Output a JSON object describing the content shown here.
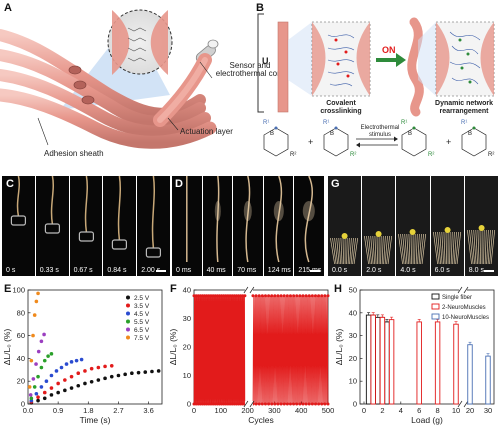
{
  "panels": {
    "A": {
      "letter": "A",
      "labels": {
        "sensor": "Sensor and electrothermal core",
        "actuation": "Actuation layer",
        "adhesion": "Adhesion sheath"
      }
    },
    "B": {
      "letter": "B",
      "u_label": "U",
      "on_label": "ON",
      "left_caption": "Covalent crosslinking",
      "right_caption": "Dynamic network rearrangement",
      "stimulus_label": "Electrothermal stimulus",
      "chem": {
        "r1": "R¹",
        "r2": "R²",
        "b": "B",
        "o": "O"
      }
    },
    "C": {
      "letter": "C",
      "frames": [
        "0 s",
        "0.33 s",
        "0.67 s",
        "0.84 s",
        "2.00 s"
      ]
    },
    "D": {
      "letter": "D",
      "frames": [
        "0 ms",
        "40 ms",
        "70 ms",
        "124 ms",
        "215 ms"
      ]
    },
    "G": {
      "letter": "G",
      "frames": [
        "0.0 s",
        "2.0 s",
        "4.0 s",
        "6.0 s",
        "8.0 s"
      ]
    },
    "E": {
      "letter": "E"
    },
    "F": {
      "letter": "F"
    },
    "H": {
      "letter": "H"
    }
  },
  "colors": {
    "fiber_pink": "#e8a098",
    "fiber_dark": "#c8786e",
    "red": "#e21b1b",
    "blue": "#4a6fb3",
    "green": "#2e8b3b"
  },
  "chart_data": [
    {
      "id": "E",
      "type": "scatter",
      "xlabel": "Time (s)",
      "ylabel": "ΔL/L₀ (%)",
      "xlim": [
        0,
        4.0
      ],
      "ylim": [
        0,
        100
      ],
      "xticks": [
        "0.0",
        "0.9",
        "1.8",
        "2.7",
        "3.6"
      ],
      "yticks": [
        "0",
        "20",
        "40",
        "60",
        "80",
        "100"
      ],
      "legend_position": "top-right",
      "series": [
        {
          "name": "2.5 V",
          "color": "#111111",
          "x": [
            0.1,
            0.3,
            0.5,
            0.7,
            0.9,
            1.1,
            1.3,
            1.5,
            1.7,
            1.9,
            2.1,
            2.3,
            2.5,
            2.7,
            2.9,
            3.1,
            3.3,
            3.5,
            3.7,
            3.9
          ],
          "y": [
            1,
            3,
            5,
            8,
            10,
            12,
            14,
            16,
            18,
            19.5,
            21,
            22.5,
            24,
            25,
            26,
            27,
            27.5,
            28,
            28.5,
            29
          ]
        },
        {
          "name": "3.5 V",
          "color": "#e21b1b",
          "x": [
            0.1,
            0.3,
            0.5,
            0.7,
            0.9,
            1.1,
            1.3,
            1.5,
            1.7,
            1.9,
            2.1,
            2.3,
            2.5
          ],
          "y": [
            2,
            6,
            10,
            14,
            18,
            21,
            24,
            27,
            29,
            31,
            32,
            33,
            33.5
          ]
        },
        {
          "name": "4.5 V",
          "color": "#2a4bd0",
          "x": [
            0.1,
            0.25,
            0.4,
            0.55,
            0.7,
            0.85,
            1.0,
            1.15,
            1.3,
            1.45,
            1.6
          ],
          "y": [
            3,
            9,
            15,
            20,
            25,
            29,
            32,
            35,
            37,
            38,
            39
          ]
        },
        {
          "name": "5.5 V",
          "color": "#2aa02a",
          "x": [
            0.1,
            0.2,
            0.3,
            0.4,
            0.5,
            0.6,
            0.7
          ],
          "y": [
            5,
            15,
            24,
            32,
            38,
            42,
            44
          ]
        },
        {
          "name": "6.5 V",
          "color": "#9b3fc0",
          "x": [
            0.08,
            0.16,
            0.24,
            0.32,
            0.4,
            0.48
          ],
          "y": [
            8,
            22,
            35,
            46,
            55,
            61
          ]
        },
        {
          "name": "7.5 V",
          "color": "#f08a1c",
          "x": [
            0.05,
            0.1,
            0.15,
            0.2,
            0.25,
            0.3
          ],
          "y": [
            15,
            38,
            60,
            78,
            90,
            97
          ]
        }
      ]
    },
    {
      "id": "F",
      "type": "line",
      "xlabel": "Cycles",
      "ylabel": "ΔL/L₀ (%)",
      "xlim": [
        0,
        500
      ],
      "ylim": [
        0,
        40
      ],
      "xticks": [
        "0",
        "100",
        "200",
        "300",
        "400",
        "500"
      ],
      "yticks": [
        "0",
        "10",
        "20",
        "30",
        "40"
      ],
      "series": [
        {
          "name": "",
          "color": "#e21b1b",
          "amplitude_max": 38,
          "amplitude_min": 0
        }
      ]
    },
    {
      "id": "H",
      "type": "bar",
      "xlabel": "Load (g)",
      "ylabel": "ΔL/L₀ (%)",
      "ylim": [
        0,
        50
      ],
      "yticks": [
        "0",
        "10",
        "20",
        "30",
        "40",
        "50"
      ],
      "xticks": [
        "0",
        "2",
        "4",
        "6",
        "8",
        "10",
        "20",
        "30"
      ],
      "legend_position": "top-right",
      "series": [
        {
          "name": "Single fiber",
          "color": "#111111",
          "loads": [
            0.5,
            1.0,
            1.5,
            2.0,
            2.5
          ],
          "values": [
            39,
            38,
            38,
            37,
            36
          ]
        },
        {
          "name": "2-NeuroMuscles",
          "color": "#e21b1b",
          "loads": [
            1.0,
            2.0,
            3.0,
            6.0,
            8.0,
            10.0
          ],
          "values": [
            39,
            38,
            37,
            36,
            36,
            35
          ]
        },
        {
          "name": "10-NeuroMuscles",
          "color": "#4a6fb3",
          "loads": [
            20,
            30
          ],
          "values": [
            26,
            21
          ]
        }
      ]
    }
  ]
}
